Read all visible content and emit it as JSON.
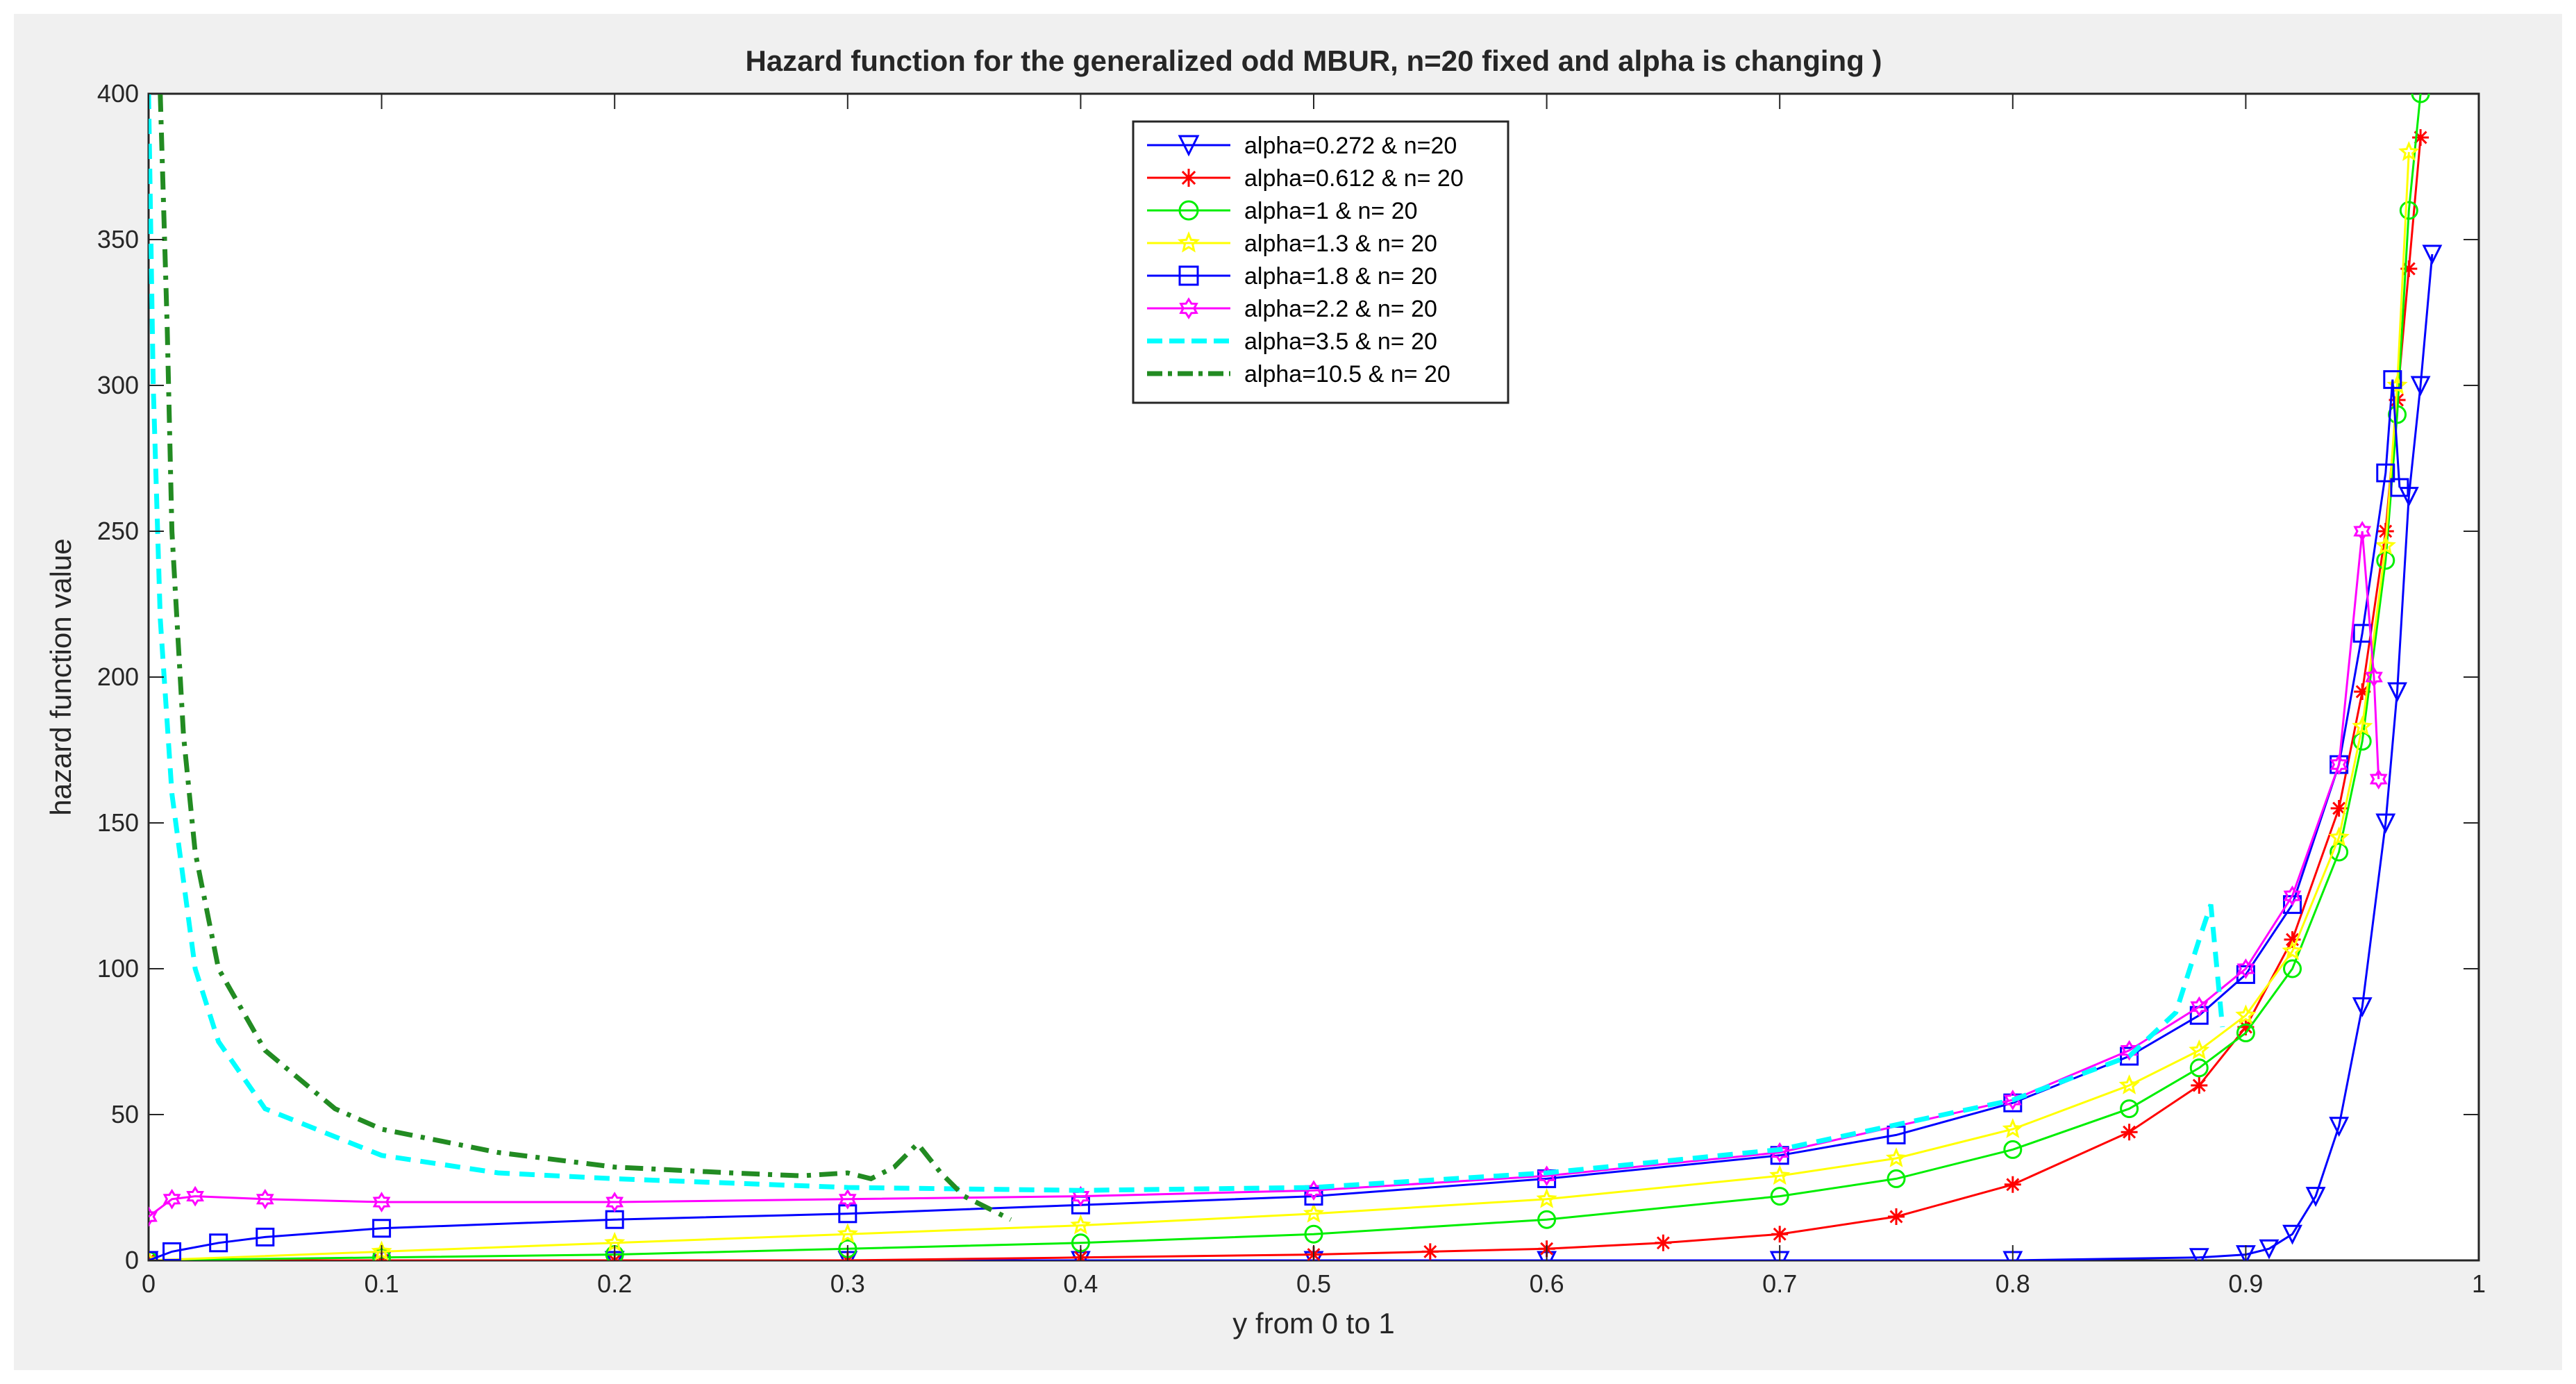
{
  "chart_data": {
    "type": "line",
    "title": "Hazard function for the generalized odd MBUR, n=20 fixed and alpha is changing )",
    "xlabel": "y from 0 to 1",
    "ylabel": "hazard function value",
    "xlim": [
      0,
      1
    ],
    "ylim": [
      0,
      400
    ],
    "xticks": [
      "0",
      "0.1",
      "0.2",
      "0.3",
      "0.4",
      "0.5",
      "0.6",
      "0.7",
      "0.8",
      "0.9",
      "1"
    ],
    "yticks": [
      "0",
      "50",
      "100",
      "150",
      "200",
      "250",
      "300",
      "350",
      "400"
    ],
    "grid": false,
    "legend_position": "top-center",
    "series": [
      {
        "name": "alpha=0.272 & n=20",
        "color": "#0000ff",
        "line_style": "solid",
        "marker": "triangle-down",
        "x": [
          0,
          0.1,
          0.2,
          0.3,
          0.4,
          0.5,
          0.6,
          0.7,
          0.8,
          0.88,
          0.9,
          0.91,
          0.92,
          0.93,
          0.94,
          0.95,
          0.96,
          0.965,
          0.97,
          0.975,
          0.98
        ],
        "y": [
          0,
          0,
          0,
          0,
          0,
          0,
          0,
          0,
          0,
          1,
          2,
          4,
          9,
          22,
          46,
          87,
          150,
          195,
          262,
          300,
          345
        ]
      },
      {
        "name": "alpha=0.612 & n= 20",
        "color": "#ff0000",
        "line_style": "solid",
        "marker": "asterisk",
        "x": [
          0,
          0.1,
          0.2,
          0.3,
          0.4,
          0.5,
          0.55,
          0.6,
          0.65,
          0.7,
          0.75,
          0.8,
          0.85,
          0.88,
          0.9,
          0.92,
          0.94,
          0.95,
          0.96,
          0.965,
          0.97,
          0.975
        ],
        "y": [
          0,
          0,
          0,
          0,
          1,
          2,
          3,
          4,
          6,
          9,
          15,
          26,
          44,
          60,
          80,
          110,
          155,
          195,
          250,
          295,
          340,
          385
        ]
      },
      {
        "name": "alpha=1 & n= 20",
        "color": "#00ee00",
        "line_style": "solid",
        "marker": "circle",
        "x": [
          0,
          0.1,
          0.2,
          0.3,
          0.4,
          0.5,
          0.6,
          0.7,
          0.75,
          0.8,
          0.85,
          0.88,
          0.9,
          0.92,
          0.94,
          0.95,
          0.96,
          0.965,
          0.97,
          0.975
        ],
        "y": [
          0,
          1,
          2,
          4,
          6,
          9,
          14,
          22,
          28,
          38,
          52,
          66,
          78,
          100,
          140,
          178,
          240,
          290,
          360,
          400
        ]
      },
      {
        "name": "alpha=1.3 & n= 20",
        "color": "#ffff00",
        "line_style": "solid",
        "marker": "star",
        "x": [
          0,
          0.1,
          0.2,
          0.3,
          0.4,
          0.5,
          0.6,
          0.7,
          0.75,
          0.8,
          0.85,
          0.88,
          0.9,
          0.92,
          0.94,
          0.95,
          0.96,
          0.965,
          0.97
        ],
        "y": [
          0,
          3,
          6,
          9,
          12,
          16,
          21,
          29,
          35,
          45,
          60,
          72,
          84,
          106,
          145,
          183,
          245,
          300,
          380
        ]
      },
      {
        "name": "alpha=1.8 & n= 20",
        "color": "#0000ff",
        "line_style": "solid",
        "marker": "square",
        "x": [
          0,
          0.01,
          0.03,
          0.05,
          0.1,
          0.2,
          0.3,
          0.4,
          0.5,
          0.6,
          0.7,
          0.75,
          0.8,
          0.85,
          0.88,
          0.9,
          0.92,
          0.94,
          0.95,
          0.96,
          0.963,
          0.966
        ],
        "y": [
          0,
          3,
          6,
          8,
          11,
          14,
          16,
          19,
          22,
          28,
          36,
          43,
          54,
          70,
          84,
          98,
          122,
          170,
          215,
          270,
          302,
          265
        ]
      },
      {
        "name": "alpha=2.2 & n= 20",
        "color": "#ff00ff",
        "line_style": "solid",
        "marker": "hexagram",
        "x": [
          0,
          0.01,
          0.02,
          0.05,
          0.1,
          0.2,
          0.3,
          0.4,
          0.5,
          0.6,
          0.7,
          0.8,
          0.85,
          0.88,
          0.9,
          0.92,
          0.94,
          0.95,
          0.955,
          0.957
        ],
        "y": [
          15,
          21,
          22,
          21,
          20,
          20,
          21,
          22,
          24,
          29,
          37,
          55,
          72,
          87,
          100,
          125,
          170,
          250,
          200,
          165
        ]
      },
      {
        "name": "alpha=3.5 & n= 20",
        "color": "#00ffff",
        "line_style": "dashed",
        "marker": "none",
        "x": [
          0,
          0.002,
          0.005,
          0.01,
          0.02,
          0.03,
          0.05,
          0.1,
          0.15,
          0.2,
          0.3,
          0.4,
          0.5,
          0.6,
          0.7,
          0.8,
          0.85,
          0.87,
          0.88,
          0.885,
          0.89
        ],
        "y": [
          400,
          300,
          220,
          160,
          100,
          75,
          52,
          36,
          30,
          28,
          25,
          24,
          25,
          30,
          38,
          55,
          70,
          85,
          110,
          122,
          80
        ]
      },
      {
        "name": "alpha=10.5 & n= 20",
        "color": "#228b22",
        "line_style": "dash-dot",
        "marker": "none",
        "x": [
          0.005,
          0.008,
          0.01,
          0.015,
          0.02,
          0.03,
          0.05,
          0.08,
          0.1,
          0.15,
          0.2,
          0.25,
          0.28,
          0.3,
          0.31,
          0.32,
          0.33,
          0.34,
          0.35,
          0.37
        ],
        "y": [
          400,
          320,
          250,
          180,
          140,
          100,
          72,
          52,
          45,
          37,
          32,
          30,
          29,
          30,
          28,
          32,
          40,
          30,
          22,
          14
        ]
      }
    ]
  }
}
